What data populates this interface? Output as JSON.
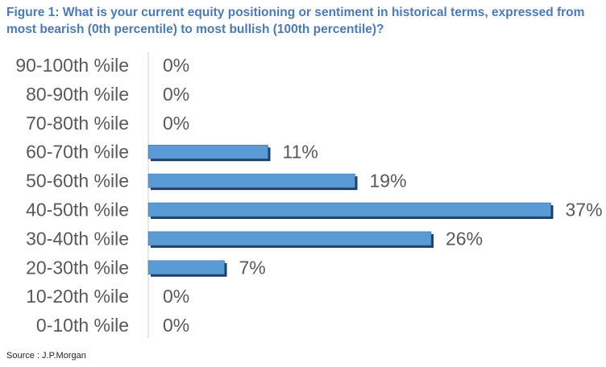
{
  "figure": {
    "title": "Figure 1: What is your current equity positioning or sentiment in historical terms, expressed from most bearish (0th percentile) to most bullish (100th percentile)?",
    "source": "Source : J.P.Morgan"
  },
  "chart_data": {
    "type": "bar",
    "orientation": "horizontal",
    "categories": [
      "90-100th %ile",
      "80-90th %ile",
      "70-80th %ile",
      "60-70th %ile",
      "50-60th %ile",
      "40-50th %ile",
      "30-40th %ile",
      "20-30th %ile",
      "10-20th %ile",
      "0-10th %ile"
    ],
    "values": [
      0,
      0,
      0,
      11,
      19,
      37,
      26,
      7,
      0,
      0
    ],
    "value_labels": [
      "0%",
      "0%",
      "0%",
      "11%",
      "19%",
      "37%",
      "26%",
      "7%",
      "0%",
      "0%"
    ],
    "xlim": [
      0,
      37
    ],
    "grid": false,
    "bar_color": "#5b9bd5",
    "bar_shadow_color": "#1f3f66"
  }
}
